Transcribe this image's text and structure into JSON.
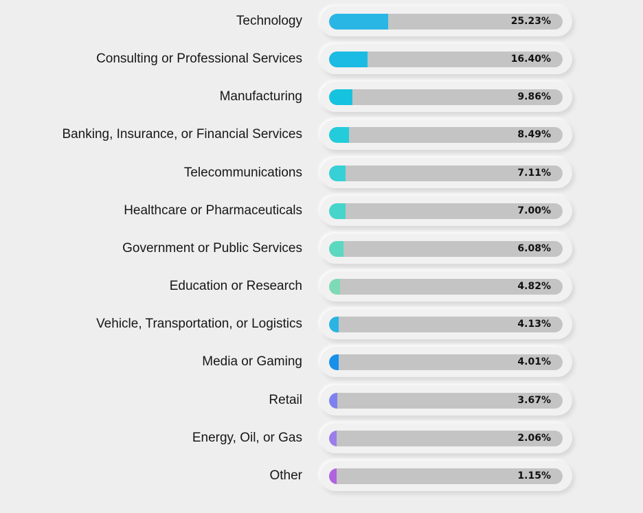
{
  "chart_data": {
    "type": "bar",
    "orientation": "horizontal",
    "categories": [
      "Technology",
      "Consulting or Professional Services",
      "Manufacturing",
      "Banking, Insurance, or Financial Services",
      "Telecommunications",
      "Healthcare or Pharmaceuticals",
      "Government or Public Services",
      "Education or Research",
      "Vehicle, Transportation, or Logistics",
      "Media or Gaming",
      "Retail",
      "Energy, Oil, or Gas",
      "Other"
    ],
    "values": [
      25.23,
      16.4,
      9.86,
      8.49,
      7.11,
      7.0,
      6.08,
      4.82,
      4.13,
      4.01,
      3.67,
      2.06,
      1.15
    ],
    "value_labels": [
      "25.23%",
      "16.40%",
      "9.86%",
      "8.49%",
      "7.11%",
      "7.00%",
      "6.08%",
      "4.82%",
      "4.13%",
      "4.01%",
      "3.67%",
      "2.06%",
      "1.15%"
    ],
    "colors": [
      "#29b6e5",
      "#1bbbe3",
      "#16c3df",
      "#22ccdb",
      "#37d0d6",
      "#47d4cb",
      "#5bd8c0",
      "#7ddab6",
      "#2ab4e3",
      "#1690ea",
      "#7d82f0",
      "#9c7eea",
      "#b063df"
    ],
    "xlim": [
      0,
      100
    ],
    "title": "",
    "xlabel": "",
    "ylabel": "",
    "grid": false,
    "legend": "none"
  }
}
